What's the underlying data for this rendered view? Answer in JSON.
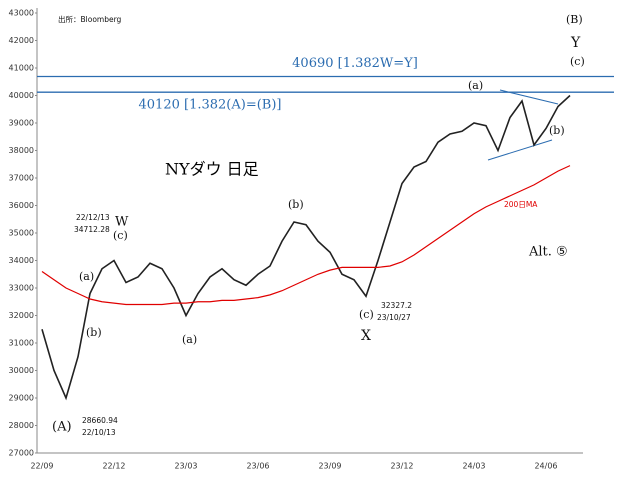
{
  "chart_data": {
    "type": "line",
    "title": "NYダウ 日足",
    "source": "出所：Bloomberg",
    "categories": [
      "22/09",
      null,
      null,
      null,
      null,
      null,
      "22/12",
      null,
      null,
      null,
      null,
      null,
      "23/03",
      null,
      null,
      null,
      null,
      null,
      "23/06",
      null,
      null,
      null,
      null,
      null,
      "23/09",
      null,
      null,
      null,
      null,
      null,
      "23/12",
      null,
      null,
      null,
      null,
      null,
      "24/03",
      null,
      null,
      null,
      null,
      null,
      "24/06",
      null,
      null
    ],
    "series": [
      {
        "name": "NYダウ",
        "color": "#222222",
        "values": [
          31500,
          30000,
          29000,
          30500,
          32800,
          33700,
          34000,
          33200,
          33400,
          33900,
          33700,
          33000,
          32000,
          32800,
          33400,
          33700,
          33300,
          33100,
          33500,
          33800,
          34700,
          35400,
          35300,
          34700,
          34300,
          33500,
          33300,
          32700,
          34000,
          35400,
          36800,
          37400,
          37600,
          38300,
          38600,
          38700,
          39000,
          38900,
          38000,
          39200,
          39800,
          38200,
          38800,
          39600,
          40000
        ]
      },
      {
        "name": "200日MA",
        "color": "#e00000",
        "values": [
          33600,
          33300,
          33000,
          32800,
          32600,
          32500,
          32450,
          32400,
          32400,
          32400,
          32400,
          32450,
          32450,
          32500,
          32500,
          32550,
          32550,
          32600,
          32650,
          32750,
          32900,
          33100,
          33300,
          33500,
          33650,
          33750,
          33750,
          33750,
          33750,
          33800,
          33950,
          34200,
          34500,
          34800,
          35100,
          35400,
          35700,
          35950,
          36150,
          36350,
          36550,
          36750,
          37000,
          37250,
          37450
        ]
      }
    ],
    "levels": [
      {
        "value": 40690,
        "label": "40690 [1.382W=Y]",
        "color": "#2b6cb0"
      },
      {
        "value": 40120,
        "label": "40120 [1.382(A)=(B)]",
        "color": "#2b6cb0"
      }
    ],
    "ylim": [
      27000,
      43000
    ],
    "yticks": [
      27000,
      28000,
      29000,
      30000,
      31000,
      32000,
      33000,
      34000,
      35000,
      36000,
      37000,
      38000,
      39000,
      40000,
      41000,
      42000,
      43000
    ],
    "annotations": [
      "(B)",
      "Y",
      "(c)",
      "(a)",
      "(b)",
      "22/12/13",
      "34712.28",
      "W",
      "(c)",
      "(a)",
      "(b)",
      "(a)",
      "(b)",
      "(c)",
      "X",
      "32327.2",
      "23/10/27",
      "28660.94",
      "22/10/13",
      "(A)",
      "Alt. ⑤"
    ]
  }
}
